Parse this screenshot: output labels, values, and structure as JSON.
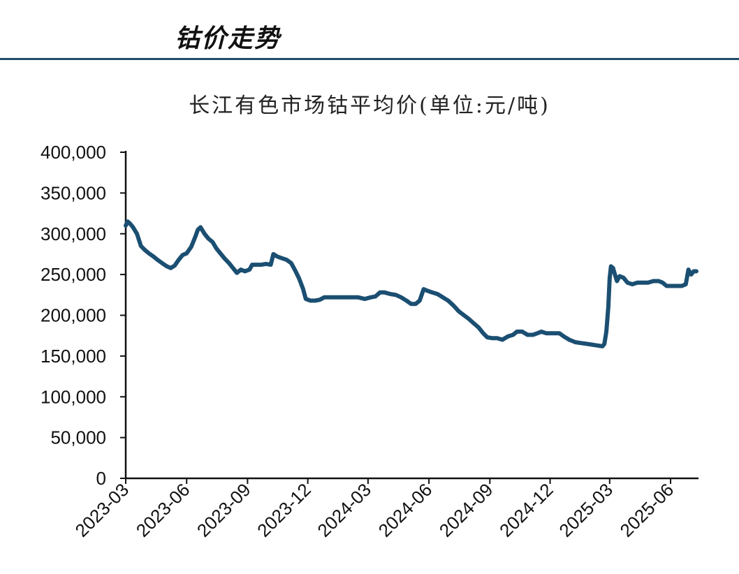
{
  "header": {
    "title": "钴价走势"
  },
  "chart_data": {
    "type": "line",
    "title": "长江有色市场钴平均价(单位:元/吨)",
    "xlabel": "",
    "ylabel": "",
    "ylim": [
      0,
      400000
    ],
    "y_ticks": [
      "0",
      "50,000",
      "100,000",
      "150,000",
      "200,000",
      "250,000",
      "300,000",
      "350,000",
      "400,000"
    ],
    "x_ticks": [
      "2023-03",
      "2023-06",
      "2023-09",
      "2023-12",
      "2024-03",
      "2024-06",
      "2024-09",
      "2024-12",
      "2025-03",
      "2025-06"
    ],
    "xlim": [
      "2023-03-01",
      "2025-07-10"
    ],
    "grid": false,
    "legend": "none",
    "line_color": "#1b4f72",
    "series": [
      {
        "name": "",
        "points": [
          [
            "2023-03-01",
            310000
          ],
          [
            "2023-03-04",
            315000
          ],
          [
            "2023-03-08",
            312000
          ],
          [
            "2023-03-12",
            308000
          ],
          [
            "2023-03-18",
            300000
          ],
          [
            "2023-03-24",
            285000
          ],
          [
            "2023-03-30",
            280000
          ],
          [
            "2023-04-05",
            276000
          ],
          [
            "2023-04-12",
            272000
          ],
          [
            "2023-04-18",
            268000
          ],
          [
            "2023-04-25",
            264000
          ],
          [
            "2023-05-02",
            260000
          ],
          [
            "2023-05-08",
            258000
          ],
          [
            "2023-05-14",
            261000
          ],
          [
            "2023-05-20",
            268000
          ],
          [
            "2023-05-26",
            274000
          ],
          [
            "2023-06-01",
            276000
          ],
          [
            "2023-06-08",
            284000
          ],
          [
            "2023-06-14",
            296000
          ],
          [
            "2023-06-18",
            305000
          ],
          [
            "2023-06-22",
            308000
          ],
          [
            "2023-06-28",
            300000
          ],
          [
            "2023-07-04",
            294000
          ],
          [
            "2023-07-10",
            290000
          ],
          [
            "2023-07-16",
            282000
          ],
          [
            "2023-07-22",
            276000
          ],
          [
            "2023-07-28",
            270000
          ],
          [
            "2023-08-04",
            264000
          ],
          [
            "2023-08-10",
            258000
          ],
          [
            "2023-08-16",
            252000
          ],
          [
            "2023-08-22",
            256000
          ],
          [
            "2023-08-28",
            254000
          ],
          [
            "2023-09-04",
            256000
          ],
          [
            "2023-09-08",
            262000
          ],
          [
            "2023-09-15",
            262000
          ],
          [
            "2023-09-22",
            262000
          ],
          [
            "2023-09-29",
            263000
          ],
          [
            "2023-10-06",
            262000
          ],
          [
            "2023-10-10",
            275000
          ],
          [
            "2023-10-16",
            272000
          ],
          [
            "2023-10-23",
            270000
          ],
          [
            "2023-10-30",
            268000
          ],
          [
            "2023-11-06",
            264000
          ],
          [
            "2023-11-12",
            255000
          ],
          [
            "2023-11-18",
            245000
          ],
          [
            "2023-11-24",
            232000
          ],
          [
            "2023-11-28",
            220000
          ],
          [
            "2023-12-05",
            218000
          ],
          [
            "2023-12-12",
            218000
          ],
          [
            "2023-12-19",
            219000
          ],
          [
            "2023-12-26",
            222000
          ],
          [
            "2024-01-05",
            222000
          ],
          [
            "2024-01-15",
            222000
          ],
          [
            "2024-01-25",
            222000
          ],
          [
            "2024-02-05",
            222000
          ],
          [
            "2024-02-15",
            222000
          ],
          [
            "2024-02-25",
            220000
          ],
          [
            "2024-03-05",
            222000
          ],
          [
            "2024-03-12",
            223000
          ],
          [
            "2024-03-19",
            228000
          ],
          [
            "2024-03-26",
            228000
          ],
          [
            "2024-04-04",
            226000
          ],
          [
            "2024-04-12",
            225000
          ],
          [
            "2024-04-20",
            222000
          ],
          [
            "2024-04-28",
            218000
          ],
          [
            "2024-05-05",
            214000
          ],
          [
            "2024-05-12",
            214000
          ],
          [
            "2024-05-18",
            218000
          ],
          [
            "2024-05-24",
            232000
          ],
          [
            "2024-05-30",
            230000
          ],
          [
            "2024-06-06",
            228000
          ],
          [
            "2024-06-14",
            226000
          ],
          [
            "2024-06-22",
            222000
          ],
          [
            "2024-06-30",
            218000
          ],
          [
            "2024-07-08",
            212000
          ],
          [
            "2024-07-16",
            205000
          ],
          [
            "2024-07-24",
            200000
          ],
          [
            "2024-08-01",
            195000
          ],
          [
            "2024-08-08",
            190000
          ],
          [
            "2024-08-15",
            185000
          ],
          [
            "2024-08-22",
            178000
          ],
          [
            "2024-08-28",
            173000
          ],
          [
            "2024-09-04",
            172000
          ],
          [
            "2024-09-12",
            172000
          ],
          [
            "2024-09-20",
            170000
          ],
          [
            "2024-09-28",
            174000
          ],
          [
            "2024-10-06",
            176000
          ],
          [
            "2024-10-12",
            180000
          ],
          [
            "2024-10-20",
            180000
          ],
          [
            "2024-10-28",
            176000
          ],
          [
            "2024-11-05",
            176000
          ],
          [
            "2024-11-12",
            178000
          ],
          [
            "2024-11-18",
            180000
          ],
          [
            "2024-11-25",
            178000
          ],
          [
            "2024-12-05",
            178000
          ],
          [
            "2024-12-15",
            178000
          ],
          [
            "2024-12-22",
            174000
          ],
          [
            "2024-12-30",
            170000
          ],
          [
            "2025-01-08",
            167000
          ],
          [
            "2025-01-16",
            166000
          ],
          [
            "2025-01-25",
            165000
          ],
          [
            "2025-02-02",
            164000
          ],
          [
            "2025-02-10",
            163000
          ],
          [
            "2025-02-18",
            162000
          ],
          [
            "2025-02-21",
            165000
          ],
          [
            "2025-02-24",
            180000
          ],
          [
            "2025-02-27",
            210000
          ],
          [
            "2025-03-01",
            245000
          ],
          [
            "2025-03-03",
            260000
          ],
          [
            "2025-03-06",
            258000
          ],
          [
            "2025-03-09",
            250000
          ],
          [
            "2025-03-12",
            242000
          ],
          [
            "2025-03-16",
            248000
          ],
          [
            "2025-03-22",
            246000
          ],
          [
            "2025-03-28",
            240000
          ],
          [
            "2025-04-04",
            238000
          ],
          [
            "2025-04-12",
            240000
          ],
          [
            "2025-04-20",
            240000
          ],
          [
            "2025-04-28",
            240000
          ],
          [
            "2025-05-06",
            242000
          ],
          [
            "2025-05-14",
            242000
          ],
          [
            "2025-05-20",
            240000
          ],
          [
            "2025-05-26",
            236000
          ],
          [
            "2025-06-02",
            236000
          ],
          [
            "2025-06-10",
            236000
          ],
          [
            "2025-06-18",
            236000
          ],
          [
            "2025-06-24",
            238000
          ],
          [
            "2025-06-28",
            256000
          ],
          [
            "2025-07-02",
            250000
          ],
          [
            "2025-07-06",
            254000
          ],
          [
            "2025-07-10",
            254000
          ]
        ]
      }
    ]
  }
}
